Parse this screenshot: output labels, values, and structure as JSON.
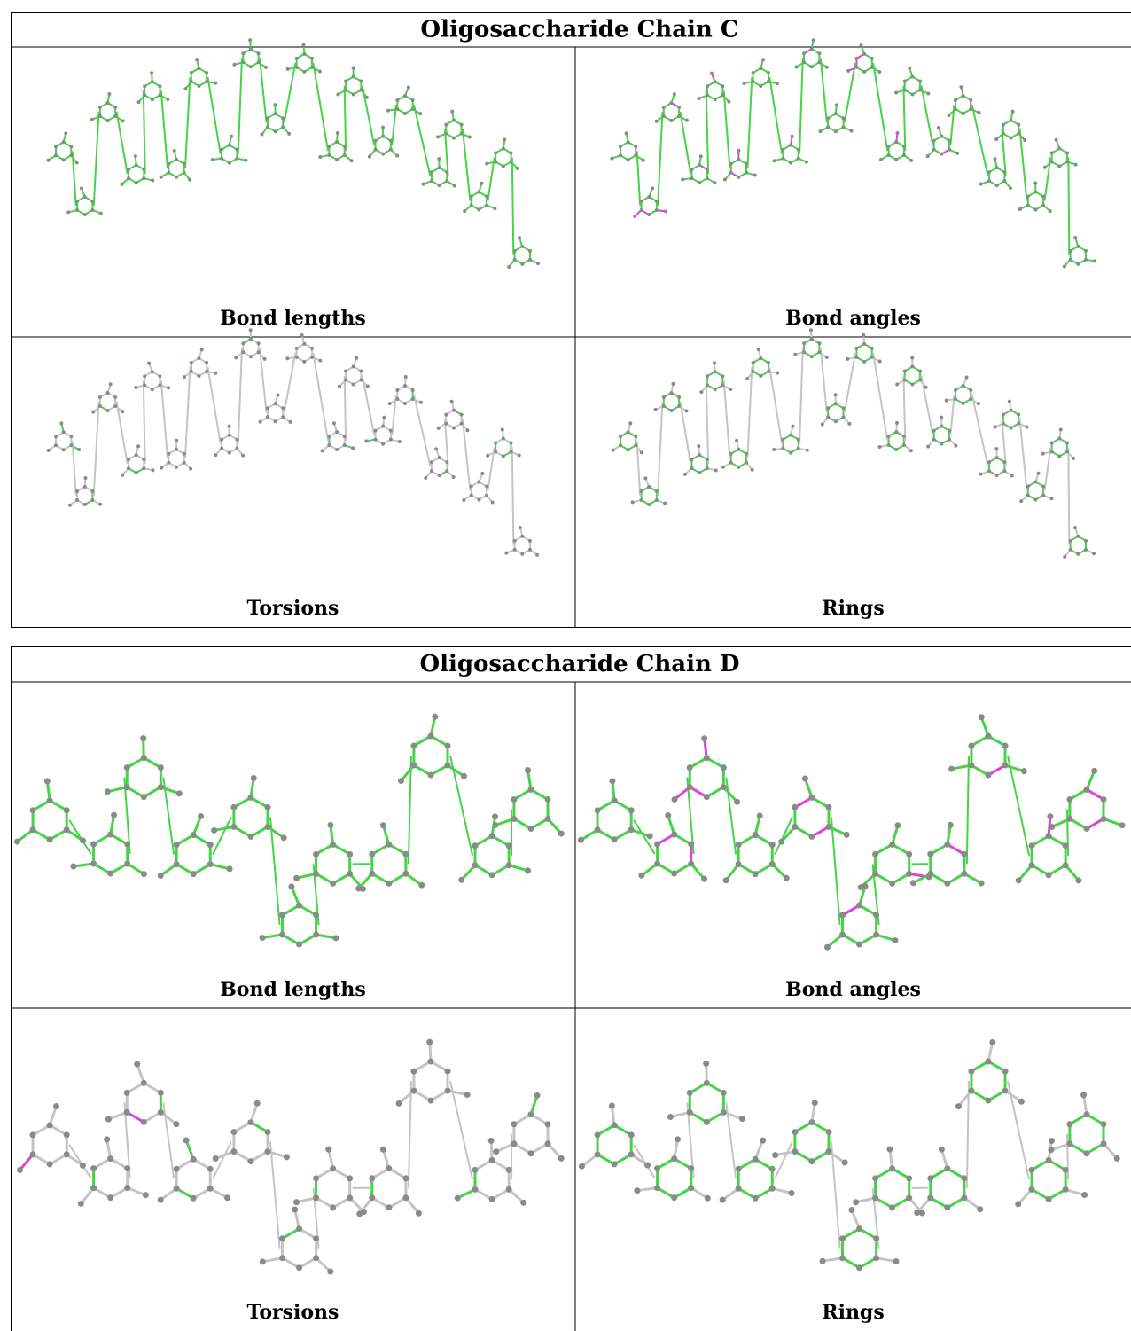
{
  "panels": [
    {
      "title": "Oligosaccharide Chain C",
      "captions": [
        "Bond lengths",
        "Bond angles",
        "Torsions",
        "Rings"
      ]
    },
    {
      "title": "Oligosaccharide Chain D",
      "captions": [
        "Bond lengths",
        "Bond angles",
        "Torsions",
        "Rings"
      ]
    }
  ]
}
